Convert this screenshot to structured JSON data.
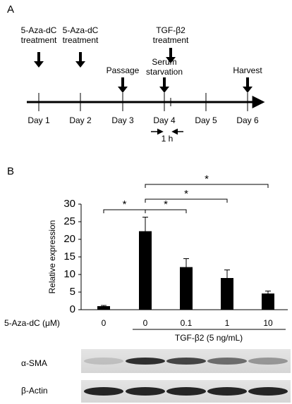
{
  "panel_a": {
    "label": "A",
    "days": [
      "Day 1",
      "Day 2",
      "Day 3",
      "Day 4",
      "Day 5",
      "Day 6"
    ],
    "events": [
      {
        "lines": [
          "5-Aza-dC",
          "treatment"
        ]
      },
      {
        "lines": [
          "5-Aza-dC",
          "treatment"
        ]
      },
      {
        "lines": [
          "Passage"
        ]
      },
      {
        "lines": [
          "Serum",
          "starvation"
        ]
      },
      {
        "lines": [
          "TGF-β2",
          "treatment"
        ]
      },
      {
        "lines": [
          "Harvest"
        ]
      }
    ],
    "interval": "1 h"
  },
  "chart_data": {
    "type": "bar",
    "panel_label": "B",
    "ylabel": "Relative expression",
    "categories": [
      "0",
      "0",
      "0.1",
      "1",
      "10"
    ],
    "values": [
      1,
      22.3,
      12.1,
      9,
      4.6
    ],
    "errors": [
      0.2,
      4,
      2.4,
      2.3,
      0.7
    ],
    "color": "#000000",
    "ylim": [
      0,
      30
    ],
    "yticks": [
      0,
      5,
      10,
      15,
      20,
      25,
      30
    ],
    "xlabel": "5-Aza-dC (μM)",
    "group_label": "TGF-β2 (5 ng/mL)",
    "significance": [
      "*",
      "*",
      "*",
      "*"
    ]
  },
  "blot": {
    "rows": [
      "α-SMA",
      "β-Actin"
    ]
  }
}
